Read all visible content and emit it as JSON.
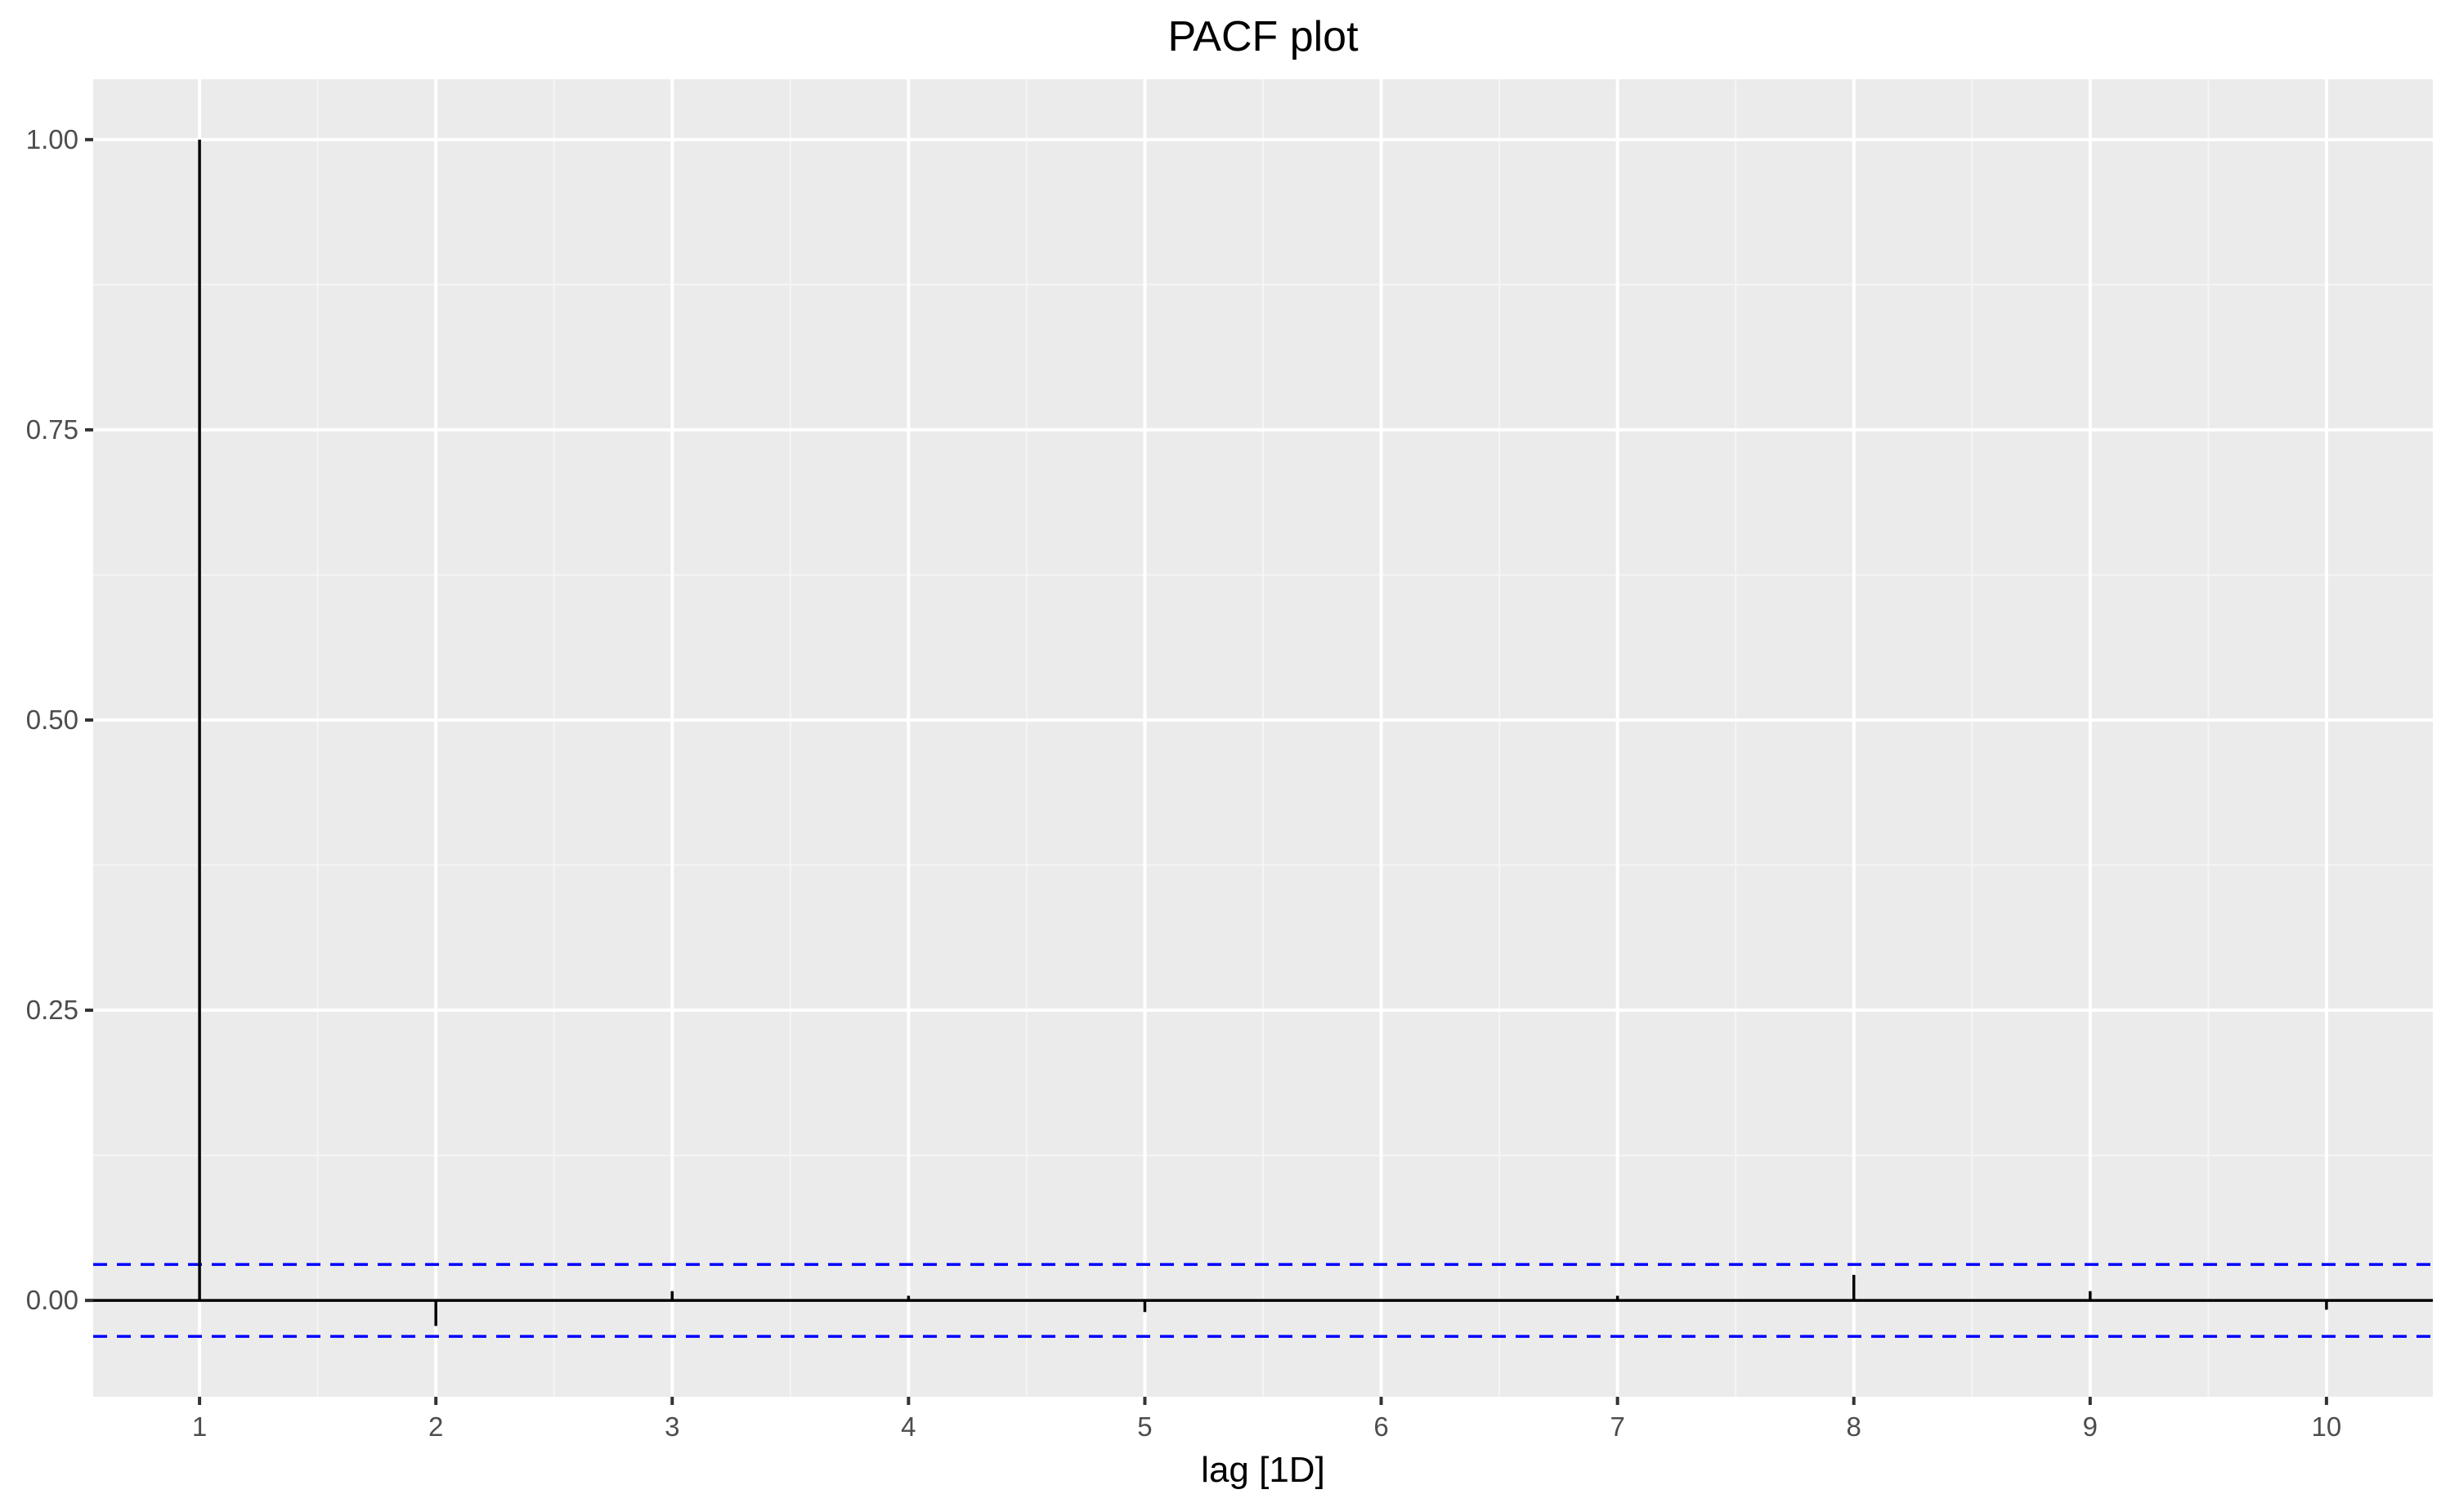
{
  "chart_data": {
    "type": "bar",
    "title": "PACF plot",
    "xlabel": "lag [1D]",
    "ylabel": "",
    "x": [
      1,
      2,
      3,
      4,
      5,
      6,
      7,
      8,
      9,
      10
    ],
    "values": [
      1.0,
      -0.022,
      0.008,
      0.004,
      -0.01,
      0.0,
      0.004,
      0.022,
      0.008,
      -0.008
    ],
    "xlim": [
      0.55,
      10.45
    ],
    "ylim": [
      -0.083,
      1.052
    ],
    "x_ticks": [
      "1",
      "2",
      "3",
      "4",
      "5",
      "6",
      "7",
      "8",
      "9",
      "10"
    ],
    "y_ticks": [
      "0.00",
      "0.25",
      "0.50",
      "0.75",
      "1.00"
    ],
    "confidence_bound": 0.031,
    "grid": true,
    "colors": {
      "panel_background": "#ebebeb",
      "grid_major": "#ffffff",
      "grid_minor": "#f5f5f5",
      "spike": "#000000",
      "zero_line": "#000000",
      "confidence_line": "#0000ff",
      "tick_label": "#4d4d4d"
    }
  }
}
